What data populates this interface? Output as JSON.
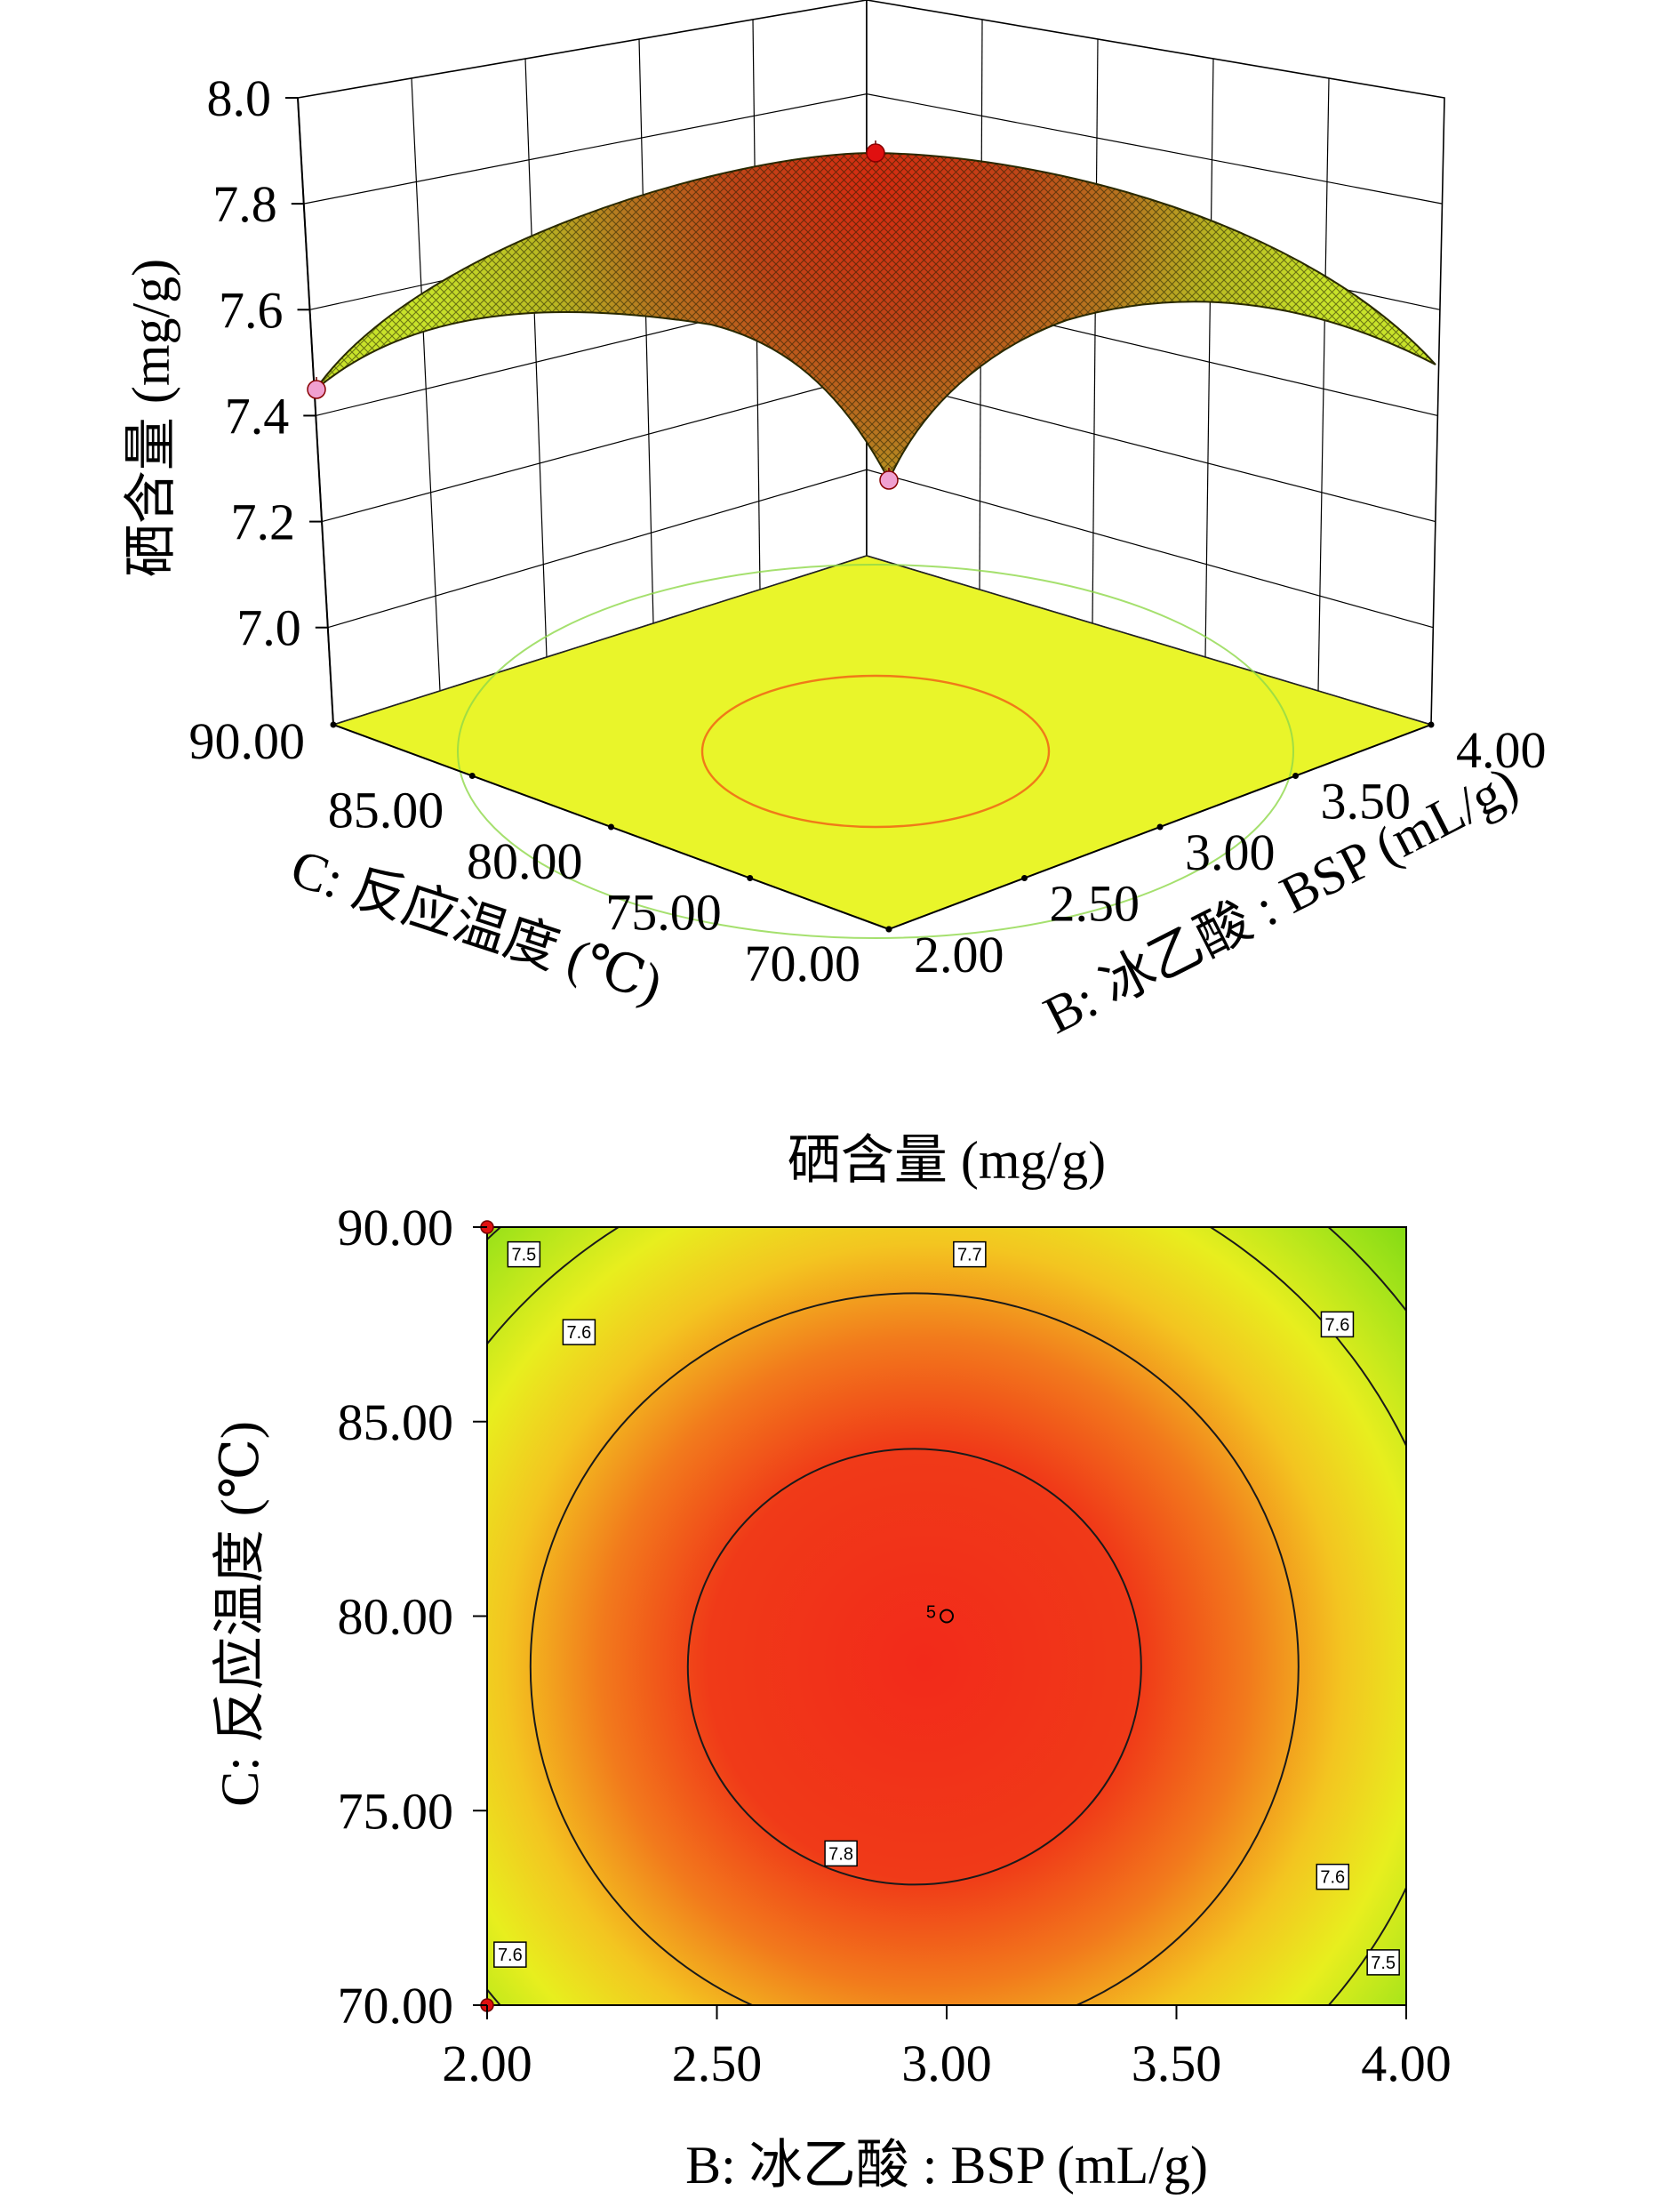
{
  "chart_data": [
    {
      "type": "surface",
      "zlabel": "硒含量 (mg/g)",
      "xlabel": "C: 反应温度 (℃)",
      "ylabel": "B: 冰乙酸 : BSP (mL/g)",
      "z_ticks": [
        "7.0",
        "7.2",
        "7.4",
        "7.6",
        "7.8",
        "8.0"
      ],
      "x_ticks": [
        "90.00",
        "85.00",
        "80.00",
        "75.00",
        "70.00"
      ],
      "y_ticks": [
        "2.00",
        "2.50",
        "3.00",
        "3.50",
        "4.00"
      ],
      "zlim": [
        7.0,
        8.0
      ],
      "xlim": [
        70,
        90
      ],
      "ylim": [
        2.0,
        4.0
      ],
      "surface_points": [
        {
          "C": 90,
          "B": 2.0,
          "z": 7.4
        },
        {
          "C": 70,
          "B": 2.0,
          "z": 7.22
        },
        {
          "C": 80,
          "B": 3.0,
          "z": 7.89
        },
        {
          "C": 70,
          "B": 4.0,
          "z": 7.36
        },
        {
          "C": 90,
          "B": 4.0,
          "z": 7.55
        },
        {
          "C": 79,
          "B": 2.9,
          "z": 7.9
        }
      ],
      "design_points_z": [
        7.88,
        7.4,
        7.22
      ],
      "floor_contours": [
        7.6,
        7.8
      ]
    },
    {
      "type": "contour",
      "title": "硒含量 (mg/g)",
      "xlabel": "B: 冰乙酸 : BSP (mL/g)",
      "ylabel": "C: 反应温度 (℃)",
      "x_ticks": [
        "2.00",
        "2.50",
        "3.00",
        "3.50",
        "4.00"
      ],
      "y_ticks": [
        "70.00",
        "75.00",
        "80.00",
        "85.00",
        "90.00"
      ],
      "xlim": [
        2.0,
        4.0
      ],
      "ylim": [
        70,
        90
      ],
      "contour_levels": [
        "7.5",
        "7.6",
        "7.7",
        "7.8"
      ],
      "contour_labels": [
        {
          "text": "7.5",
          "B": 2.08,
          "C": 89.3
        },
        {
          "text": "7.6",
          "B": 2.2,
          "C": 87.3
        },
        {
          "text": "7.7",
          "B": 3.05,
          "C": 89.3
        },
        {
          "text": "7.6",
          "B": 3.85,
          "C": 87.5
        },
        {
          "text": "7.8",
          "B": 2.77,
          "C": 73.9
        },
        {
          "text": "7.6",
          "B": 3.84,
          "C": 73.3
        },
        {
          "text": "7.5",
          "B": 3.95,
          "C": 71.1
        },
        {
          "text": "7.6",
          "B": 2.05,
          "C": 71.3
        }
      ],
      "optimum": {
        "B": 2.93,
        "C": 78.7
      },
      "center_point": {
        "B": 3.0,
        "C": 80.0,
        "label": "5"
      },
      "design_points": [
        {
          "B": 2.0,
          "C": 90.0
        },
        {
          "B": 2.0,
          "C": 70.0
        }
      ]
    }
  ]
}
